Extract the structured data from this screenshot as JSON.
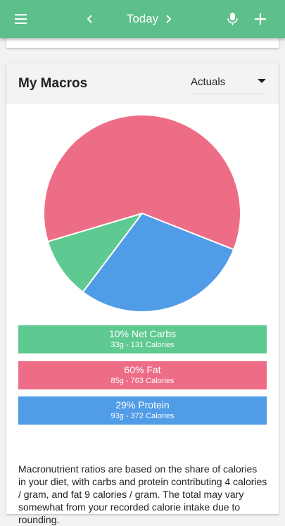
{
  "app_bar": {
    "title": "Today"
  },
  "card": {
    "title": "My Macros",
    "dropdown": "Actuals"
  },
  "chart_data": {
    "type": "pie",
    "categories": [
      "Net Carbs",
      "Fat",
      "Protein"
    ],
    "values": [
      10,
      60,
      29
    ],
    "value_labels": [
      "10%",
      "60%",
      "29%"
    ],
    "colors": [
      "#5ec991",
      "#ee6d86",
      "#519ce6"
    ],
    "details": [
      "33g - 131 Calories",
      "85g - 763 Calories",
      "93g - 372 Calories"
    ]
  },
  "description": "Macronutrient ratios are based on the share of calories in your diet, with carbs and protein contributing 4 calories / gram, and fat 9 calories / gram. The total may vary somewhat from your recorded calorie intake due to rounding."
}
